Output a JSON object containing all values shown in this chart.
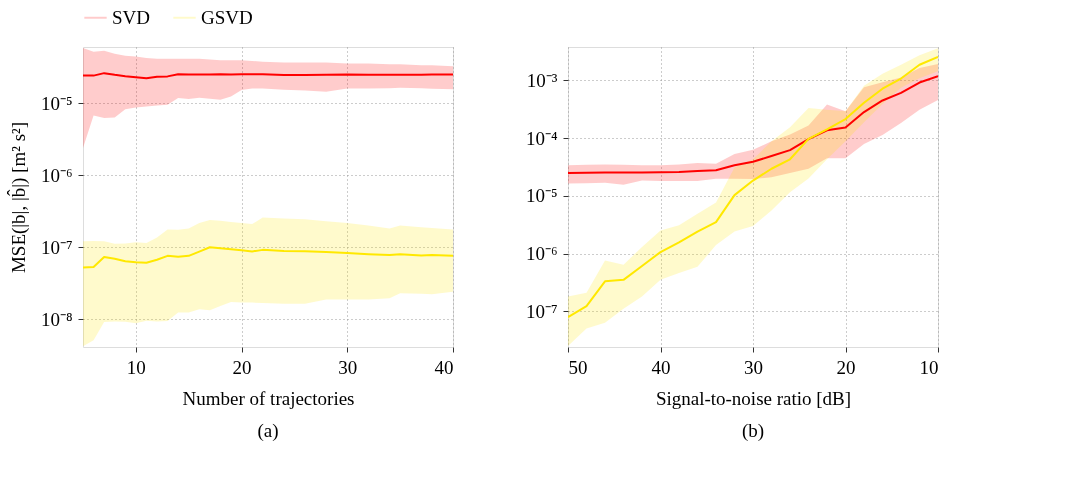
{
  "chart_data": [
    {
      "type": "line",
      "xlabel": "Number of trajectories",
      "ylabel": "MSE(|b|, |b̂|) [m² s²]",
      "annotations": [
        "(a)"
      ],
      "x": [
        5,
        6,
        7,
        8,
        9,
        10,
        11,
        12,
        13,
        14,
        15,
        16,
        17,
        18,
        19,
        20,
        21,
        22,
        24,
        26,
        28,
        30,
        32,
        34,
        35,
        37,
        38,
        40
      ],
      "series": [
        {
          "name": "SVD",
          "color": "#ff0000",
          "values": [
            2.44e-05,
            2.44e-05,
            2.64e-05,
            2.5e-05,
            2.39e-05,
            2.31e-05,
            2.24e-05,
            2.36e-05,
            2.38e-05,
            2.54e-05,
            2.52e-05,
            2.53e-05,
            2.53e-05,
            2.55e-05,
            2.53e-05,
            2.54e-05,
            2.55e-05,
            2.54e-05,
            2.48e-05,
            2.48e-05,
            2.5e-05,
            2.52e-05,
            2.5e-05,
            2.51e-05,
            2.5e-05,
            2.5e-05,
            2.52e-05,
            2.52e-05
          ],
          "upper": [
            5.9e-05,
            5.25e-05,
            5.4e-05,
            4.9e-05,
            4.6e-05,
            4.5e-05,
            4.3e-05,
            4.2e-05,
            4.2e-05,
            4.2e-05,
            4.2e-05,
            4.2e-05,
            4.1e-05,
            4e-05,
            4e-05,
            4e-05,
            3.9e-05,
            3.8e-05,
            3.7e-05,
            3.7e-05,
            3.7e-05,
            3.6e-05,
            3.6e-05,
            3.5e-05,
            3.5e-05,
            3.4e-05,
            3.4e-05,
            3.3e-05
          ],
          "lower": [
            2.4e-06,
            6.8e-06,
            6.3e-06,
            6.4e-06,
            8.3e-06,
            8.8e-06,
            9.1e-06,
            9.4e-06,
            9.6e-06,
            1.19e-05,
            1.15e-05,
            1.2e-05,
            1.16e-05,
            1.13e-05,
            1.25e-05,
            1.54e-05,
            1.62e-05,
            1.62e-05,
            1.55e-05,
            1.52e-05,
            1.45e-05,
            1.62e-05,
            1.62e-05,
            1.63e-05,
            1.65e-05,
            1.63e-05,
            1.6e-05,
            1.58e-05
          ]
        },
        {
          "name": "GSVD",
          "color": "#ffe800",
          "values": [
            5.25e-08,
            5.3e-08,
            7.3e-08,
            6.9e-08,
            6.4e-08,
            6.2e-08,
            6.1e-08,
            6.7e-08,
            7.6e-08,
            7.4e-08,
            7.6e-08,
            8.7e-08,
            1e-07,
            9.7e-08,
            9.4e-08,
            9.1e-08,
            8.75e-08,
            9.2e-08,
            8.9e-08,
            8.8e-08,
            8.6e-08,
            8.3e-08,
            8e-08,
            7.8e-08,
            8e-08,
            7.7e-08,
            7.8e-08,
            7.6e-08
          ],
          "upper": [
            1.21e-07,
            1.22e-07,
            1.21e-07,
            1.12e-07,
            1.13e-07,
            1.17e-07,
            1.15e-07,
            1.37e-07,
            1.77e-07,
            1.75e-07,
            1.83e-07,
            2.17e-07,
            2.4e-07,
            2.33e-07,
            2.25e-07,
            2.17e-07,
            2.1e-07,
            2.59e-07,
            2.52e-07,
            2.45e-07,
            2.3e-07,
            2.17e-07,
            2e-07,
            1.83e-07,
            2e-07,
            1.9e-07,
            1.85e-07,
            1.77e-07
          ],
          "lower": [
            4.2e-09,
            5.1e-09,
            9.1e-09,
            9.3e-09,
            9.2e-09,
            8.8e-09,
            9.5e-09,
            9.3e-09,
            9.4e-09,
            1.24e-08,
            1.24e-08,
            1.37e-08,
            1.33e-08,
            1.53e-08,
            1.73e-08,
            1.7e-08,
            1.7e-08,
            1.68e-08,
            1.64e-08,
            1.64e-08,
            1.87e-08,
            1.87e-08,
            1.87e-08,
            1.96e-08,
            2.29e-08,
            2.25e-08,
            2.22e-08,
            2.41e-08
          ]
        }
      ],
      "xlim": [
        5,
        40
      ],
      "xticks": [
        10,
        20,
        30,
        40
      ],
      "ylim": [
        4.1e-09,
        6.1e-05
      ],
      "log": "y",
      "yticks": [
        {
          "value": 1e-08,
          "label": "10⁻⁸"
        },
        {
          "value": 1e-07,
          "label": "10⁻⁷"
        },
        {
          "value": 1e-06,
          "label": "10⁻⁶"
        },
        {
          "value": 1e-05,
          "label": "10⁻⁵"
        }
      ],
      "grid": true,
      "legend": "top"
    },
    {
      "type": "line",
      "xlabel": "Signal-to-noise ratio [dB]",
      "annotations": [
        "(b)"
      ],
      "x": [
        50,
        48,
        46,
        44,
        42,
        40,
        38,
        36,
        34,
        32,
        30,
        28,
        26,
        24,
        22,
        20,
        18,
        16,
        14,
        12,
        10
      ],
      "series": [
        {
          "name": "SVD",
          "color": "#ff0000",
          "values": [
            2.5e-05,
            2.52e-05,
            2.55e-05,
            2.53e-05,
            2.55e-05,
            2.57e-05,
            2.6e-05,
            2.7e-05,
            2.77e-05,
            3.4e-05,
            3.9e-05,
            4.9e-05,
            6.2e-05,
            9.6e-05,
            0.000137,
            0.000153,
            0.000283,
            0.00045,
            0.00061,
            0.00092,
            0.00118
          ],
          "upper": [
            3.4e-05,
            3.45e-05,
            3.5e-05,
            3.45e-05,
            3.4e-05,
            3.4e-05,
            3.5e-05,
            3.7e-05,
            3.6e-05,
            5.3e-05,
            6.3e-05,
            8.8e-05,
            0.000116,
            0.000165,
            0.000384,
            0.000294,
            0.00076,
            0.00093,
            0.00112,
            0.00164,
            0.00192
          ],
          "lower": [
            1.63e-05,
            1.65e-05,
            1.68e-05,
            1.56e-05,
            1.85e-05,
            1.8e-05,
            1.8e-05,
            1.8e-05,
            1.98e-05,
            1.98e-05,
            1.95e-05,
            2.1e-05,
            2.5e-05,
            2.96e-05,
            4.5e-05,
            4.5e-05,
            7.9e-05,
            0.000113,
            0.000183,
            0.00031,
            0.00046
          ]
        },
        {
          "name": "GSVD",
          "color": "#ffe800",
          "values": [
            7.9e-08,
            1.23e-07,
            3.3e-07,
            3.5e-07,
            6.1e-07,
            1.06e-06,
            1.56e-06,
            2.4e-06,
            3.5e-06,
            1.03e-05,
            1.84e-05,
            2.95e-05,
            4.3e-05,
            9.7e-05,
            0.000142,
            0.000214,
            0.00041,
            0.00072,
            0.00108,
            0.00187,
            0.00257
          ],
          "upper": [
            1.8e-07,
            2.1e-07,
            7.6e-07,
            6.4e-07,
            1.3e-06,
            2.5e-06,
            3.1e-06,
            4.9e-06,
            7.7e-06,
            3.1e-05,
            4.3e-05,
            8.8e-05,
            0.000155,
            0.000334,
            0.00031,
            0.000294,
            0.00081,
            0.00131,
            0.00187,
            0.00274,
            0.0036
          ],
          "lower": [
            2.5e-08,
            5e-08,
            6.3e-08,
            1.1e-07,
            1.8e-07,
            3.5e-07,
            4.6e-07,
            5.9e-07,
            1.4e-06,
            2.4e-06,
            3e-06,
            5.6e-06,
            1.16e-05,
            2e-05,
            4.3e-05,
            8.8e-05,
            0.000188,
            0.00039,
            0.00075,
            0.00109,
            0.00145
          ]
        }
      ],
      "xlim": [
        50,
        10
      ],
      "xticks": [
        50,
        40,
        30,
        20,
        10
      ],
      "ylim": [
        2.4e-08,
        0.0038
      ],
      "log": "y",
      "yticks": [
        {
          "value": 1e-07,
          "label": "10⁻⁷"
        },
        {
          "value": 1e-06,
          "label": "10⁻⁶"
        },
        {
          "value": 1e-05,
          "label": "10⁻⁵"
        },
        {
          "value": 0.0001,
          "label": "10⁻⁴"
        },
        {
          "value": 0.001,
          "label": "10⁻³"
        }
      ],
      "grid": true,
      "legend": "top"
    }
  ]
}
